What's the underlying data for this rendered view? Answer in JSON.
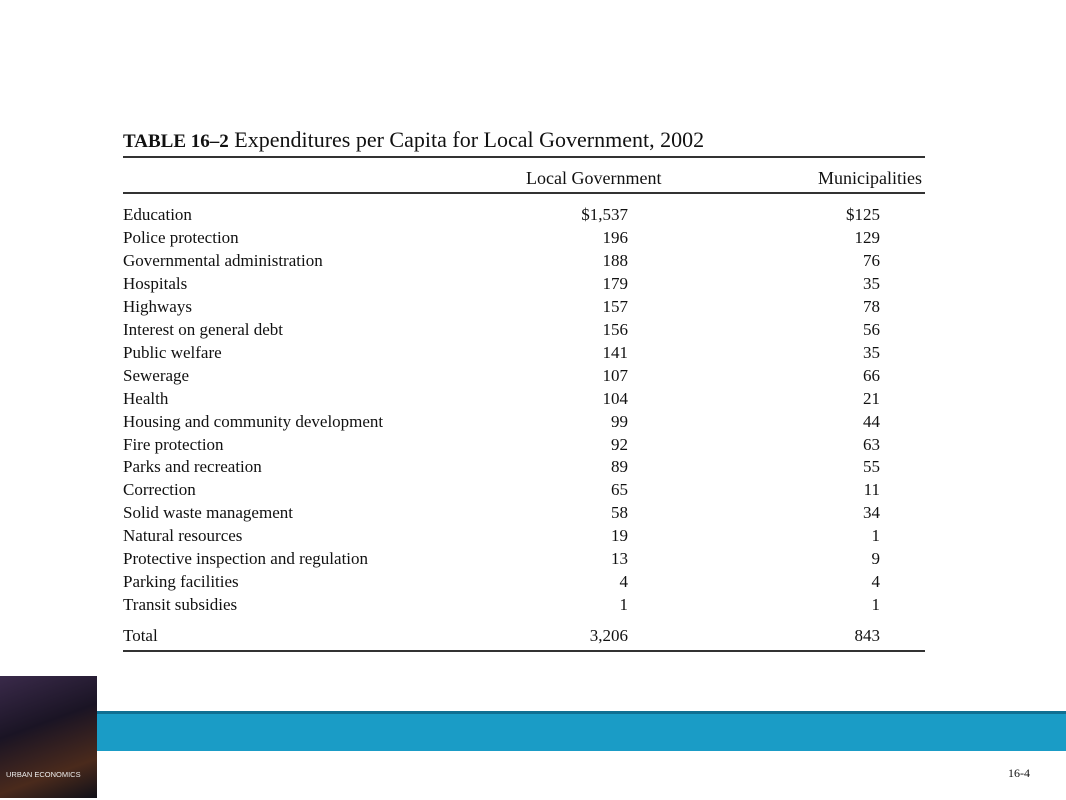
{
  "table": {
    "label": "TABLE 16–2",
    "title": "Expenditures per Capita for Local Government, 2002",
    "headers": [
      "Local Government",
      "Municipalities"
    ],
    "rows": [
      [
        "Education",
        "$1,537",
        "$125"
      ],
      [
        "Police protection",
        "196",
        "129"
      ],
      [
        "Governmental administration",
        "188",
        "76"
      ],
      [
        "Hospitals",
        "179",
        "35"
      ],
      [
        "Highways",
        "157",
        "78"
      ],
      [
        "Interest on general debt",
        "156",
        "56"
      ],
      [
        "Public welfare",
        "141",
        "35"
      ],
      [
        "Sewerage",
        "107",
        "66"
      ],
      [
        "Health",
        "104",
        "21"
      ],
      [
        "Housing and community development",
        "99",
        "44"
      ],
      [
        "Fire protection",
        "92",
        "63"
      ],
      [
        "Parks and recreation",
        "89",
        "55"
      ],
      [
        "Correction",
        "65",
        "11"
      ],
      [
        "Solid waste management",
        "58",
        "34"
      ],
      [
        "Natural resources",
        "19",
        "1"
      ],
      [
        "Protective inspection and regulation",
        "13",
        "9"
      ],
      [
        "Parking facilities",
        "4",
        "4"
      ],
      [
        "Transit subsidies",
        "1",
        "1"
      ]
    ],
    "total": [
      "Total",
      "3,206",
      "843"
    ]
  },
  "cover": {
    "title": "URBAN ECONOMICS"
  },
  "slide_number": "16-4"
}
